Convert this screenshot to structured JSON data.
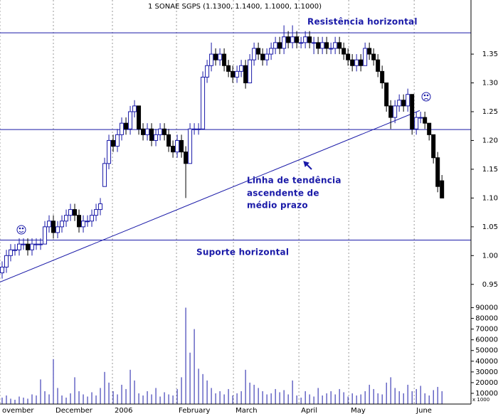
{
  "chart_data": {
    "type": "candlestick",
    "title": "1 SONAE SGPS (1.1300, 1.1400, 1.1000, 1.1000)",
    "xlim": [
      -0.5,
      109.8
    ],
    "xticks": [
      {
        "value": -0.5,
        "label": "ovember"
      },
      {
        "value": 12,
        "label": "December"
      },
      {
        "value": 25.83,
        "label": "2006"
      },
      {
        "value": 40.83,
        "label": "February"
      },
      {
        "value": 54.17,
        "label": "March"
      },
      {
        "value": 69.5,
        "label": "April"
      },
      {
        "value": 81.17,
        "label": "May"
      },
      {
        "value": 96.5,
        "label": "June"
      }
    ],
    "ylim": [
      0.925,
      1.444
    ],
    "yticks": [
      1.35,
      {
        "value": 1.3,
        "label": "1.30"
      },
      1.25,
      {
        "value": 1.2,
        "label": "1.20"
      },
      1.15,
      {
        "value": 1.1,
        "label": "1.10"
      },
      1.05,
      {
        "value": 1,
        "label": "1.00"
      },
      0.95
    ],
    "up_color": "#ffffff",
    "down_color": "#000000",
    "outline_color": "#1a1aa8",
    "ohlc": [
      [
        0.97,
        0.99,
        0.96,
        0.98
      ],
      [
        0.98,
        1.01,
        0.97,
        1.0
      ],
      [
        1.0,
        1.02,
        0.99,
        1.01
      ],
      [
        1.01,
        1.02,
        1.0,
        1.01
      ],
      [
        1.01,
        1.03,
        1.0,
        1.02
      ],
      [
        1.02,
        1.03,
        1.01,
        1.02
      ],
      [
        1.02,
        1.03,
        1.0,
        1.01
      ],
      [
        1.01,
        1.03,
        1.0,
        1.02
      ],
      [
        1.02,
        1.03,
        1.01,
        1.02
      ],
      [
        1.02,
        1.03,
        1.01,
        1.02
      ],
      [
        1.02,
        1.06,
        1.02,
        1.05
      ],
      [
        1.05,
        1.07,
        1.04,
        1.06
      ],
      [
        1.06,
        1.07,
        1.03,
        1.04
      ],
      [
        1.04,
        1.06,
        1.03,
        1.05
      ],
      [
        1.05,
        1.07,
        1.04,
        1.06
      ],
      [
        1.06,
        1.08,
        1.05,
        1.07
      ],
      [
        1.07,
        1.09,
        1.06,
        1.08
      ],
      [
        1.08,
        1.09,
        1.06,
        1.07
      ],
      [
        1.07,
        1.08,
        1.04,
        1.05
      ],
      [
        1.05,
        1.07,
        1.04,
        1.06
      ],
      [
        1.06,
        1.07,
        1.05,
        1.06
      ],
      [
        1.06,
        1.08,
        1.05,
        1.07
      ],
      [
        1.07,
        1.09,
        1.06,
        1.08
      ],
      [
        1.08,
        1.1,
        1.07,
        1.09
      ],
      [
        1.12,
        1.17,
        1.12,
        1.16
      ],
      [
        1.16,
        1.21,
        1.15,
        1.2
      ],
      [
        1.2,
        1.21,
        1.18,
        1.19
      ],
      [
        1.19,
        1.22,
        1.18,
        1.21
      ],
      [
        1.21,
        1.24,
        1.2,
        1.23
      ],
      [
        1.23,
        1.24,
        1.21,
        1.22
      ],
      [
        1.22,
        1.26,
        1.21,
        1.25
      ],
      [
        1.25,
        1.27,
        1.24,
        1.26
      ],
      [
        1.26,
        1.26,
        1.21,
        1.22
      ],
      [
        1.22,
        1.23,
        1.2,
        1.21
      ],
      [
        1.21,
        1.23,
        1.2,
        1.22
      ],
      [
        1.22,
        1.23,
        1.19,
        1.2
      ],
      [
        1.2,
        1.22,
        1.19,
        1.21
      ],
      [
        1.21,
        1.23,
        1.2,
        1.22
      ],
      [
        1.22,
        1.23,
        1.2,
        1.21
      ],
      [
        1.21,
        1.22,
        1.18,
        1.19
      ],
      [
        1.19,
        1.2,
        1.17,
        1.18
      ],
      [
        1.18,
        1.21,
        1.17,
        1.2
      ],
      [
        1.2,
        1.21,
        1.17,
        1.18
      ],
      [
        1.18,
        1.19,
        1.1,
        1.16
      ],
      [
        1.16,
        1.23,
        1.16,
        1.22
      ],
      [
        1.22,
        1.23,
        1.21,
        1.22
      ],
      [
        1.22,
        1.23,
        1.21,
        1.22
      ],
      [
        1.22,
        1.32,
        1.22,
        1.31
      ],
      [
        1.31,
        1.34,
        1.3,
        1.33
      ],
      [
        1.33,
        1.37,
        1.32,
        1.35
      ],
      [
        1.35,
        1.36,
        1.33,
        1.34
      ],
      [
        1.34,
        1.36,
        1.33,
        1.35
      ],
      [
        1.35,
        1.36,
        1.32,
        1.33
      ],
      [
        1.33,
        1.34,
        1.31,
        1.32
      ],
      [
        1.32,
        1.33,
        1.3,
        1.31
      ],
      [
        1.31,
        1.33,
        1.3,
        1.32
      ],
      [
        1.32,
        1.34,
        1.31,
        1.33
      ],
      [
        1.33,
        1.34,
        1.29,
        1.3
      ],
      [
        1.3,
        1.35,
        1.3,
        1.34
      ],
      [
        1.34,
        1.37,
        1.33,
        1.36
      ],
      [
        1.36,
        1.37,
        1.34,
        1.35
      ],
      [
        1.35,
        1.36,
        1.33,
        1.34
      ],
      [
        1.34,
        1.36,
        1.33,
        1.35
      ],
      [
        1.35,
        1.37,
        1.34,
        1.36
      ],
      [
        1.36,
        1.38,
        1.35,
        1.37
      ],
      [
        1.37,
        1.38,
        1.35,
        1.36
      ],
      [
        1.36,
        1.4,
        1.35,
        1.38
      ],
      [
        1.38,
        1.39,
        1.36,
        1.37
      ],
      [
        1.37,
        1.4,
        1.36,
        1.38
      ],
      [
        1.38,
        1.39,
        1.36,
        1.37
      ],
      [
        1.37,
        1.38,
        1.36,
        1.37
      ],
      [
        1.37,
        1.39,
        1.36,
        1.38
      ],
      [
        1.38,
        1.39,
        1.36,
        1.37
      ],
      [
        1.37,
        1.38,
        1.35,
        1.37
      ],
      [
        1.37,
        1.38,
        1.35,
        1.36
      ],
      [
        1.36,
        1.38,
        1.35,
        1.37
      ],
      [
        1.37,
        1.38,
        1.35,
        1.36
      ],
      [
        1.36,
        1.37,
        1.35,
        1.36
      ],
      [
        1.36,
        1.38,
        1.35,
        1.37
      ],
      [
        1.37,
        1.38,
        1.35,
        1.36
      ],
      [
        1.36,
        1.37,
        1.34,
        1.35
      ],
      [
        1.35,
        1.36,
        1.33,
        1.34
      ],
      [
        1.34,
        1.35,
        1.32,
        1.33
      ],
      [
        1.33,
        1.35,
        1.32,
        1.34
      ],
      [
        1.34,
        1.35,
        1.32,
        1.33
      ],
      [
        1.33,
        1.37,
        1.33,
        1.36
      ],
      [
        1.36,
        1.37,
        1.34,
        1.35
      ],
      [
        1.35,
        1.36,
        1.33,
        1.34
      ],
      [
        1.34,
        1.35,
        1.31,
        1.32
      ],
      [
        1.32,
        1.33,
        1.29,
        1.3
      ],
      [
        1.3,
        1.3,
        1.25,
        1.26
      ],
      [
        1.26,
        1.27,
        1.22,
        1.24
      ],
      [
        1.24,
        1.27,
        1.23,
        1.26
      ],
      [
        1.26,
        1.28,
        1.25,
        1.27
      ],
      [
        1.27,
        1.28,
        1.25,
        1.26
      ],
      [
        1.26,
        1.29,
        1.25,
        1.28
      ],
      [
        1.28,
        1.28,
        1.21,
        1.22
      ],
      [
        1.22,
        1.25,
        1.21,
        1.24
      ],
      [
        1.24,
        1.25,
        1.23,
        1.24
      ],
      [
        1.24,
        1.25,
        1.22,
        1.23
      ],
      [
        1.23,
        1.23,
        1.2,
        1.21
      ],
      [
        1.21,
        1.21,
        1.16,
        1.17
      ],
      [
        1.17,
        1.18,
        1.11,
        1.12
      ],
      [
        1.13,
        1.14,
        1.1,
        1.1
      ]
    ],
    "hlines": [
      1.387,
      1.219,
      1.027
    ],
    "line_color": "#1a1aa8",
    "trendline": {
      "x": [
        -0.5,
        97.8
      ],
      "y": [
        0.954,
        1.252
      ]
    },
    "annotations": [
      "Resistência horizontal",
      "Linha de tendência",
      "ascendente de",
      "médio prazo",
      "Suporte horizontal"
    ],
    "volume": {
      "unit_label": "x 1000",
      "ylim": [
        0,
        95000
      ],
      "yticks": [
        90000,
        80000,
        70000,
        60000,
        50000,
        40000,
        30000,
        20000,
        10000
      ],
      "color": "#1a1aa8",
      "values": [
        6000,
        8000,
        5000,
        4000,
        7000,
        6000,
        5000,
        9000,
        8000,
        23000,
        12000,
        9000,
        42000,
        15000,
        8000,
        6000,
        10000,
        25000,
        12000,
        9000,
        7000,
        11000,
        8000,
        15000,
        30000,
        20000,
        12000,
        9000,
        18000,
        14000,
        32000,
        22000,
        10000,
        8000,
        12000,
        9000,
        15000,
        7000,
        11000,
        9000,
        8000,
        14000,
        25000,
        90000,
        48000,
        70000,
        33000,
        28000,
        22000,
        15000,
        10000,
        12000,
        9000,
        14000,
        8000,
        10000,
        12000,
        32000,
        20000,
        18000,
        15000,
        12000,
        9000,
        10000,
        14000,
        11000,
        13000,
        9000,
        22000,
        8000,
        6000,
        12000,
        9000,
        7000,
        15000,
        8000,
        10000,
        12000,
        9000,
        14000,
        11000,
        7000,
        10000,
        8000,
        9000,
        12000,
        18000,
        14000,
        10000,
        9000,
        20000,
        25000,
        15000,
        12000,
        10000,
        18000,
        12000,
        14000,
        17000,
        10000,
        8000,
        13000,
        16000,
        12000
      ]
    }
  }
}
